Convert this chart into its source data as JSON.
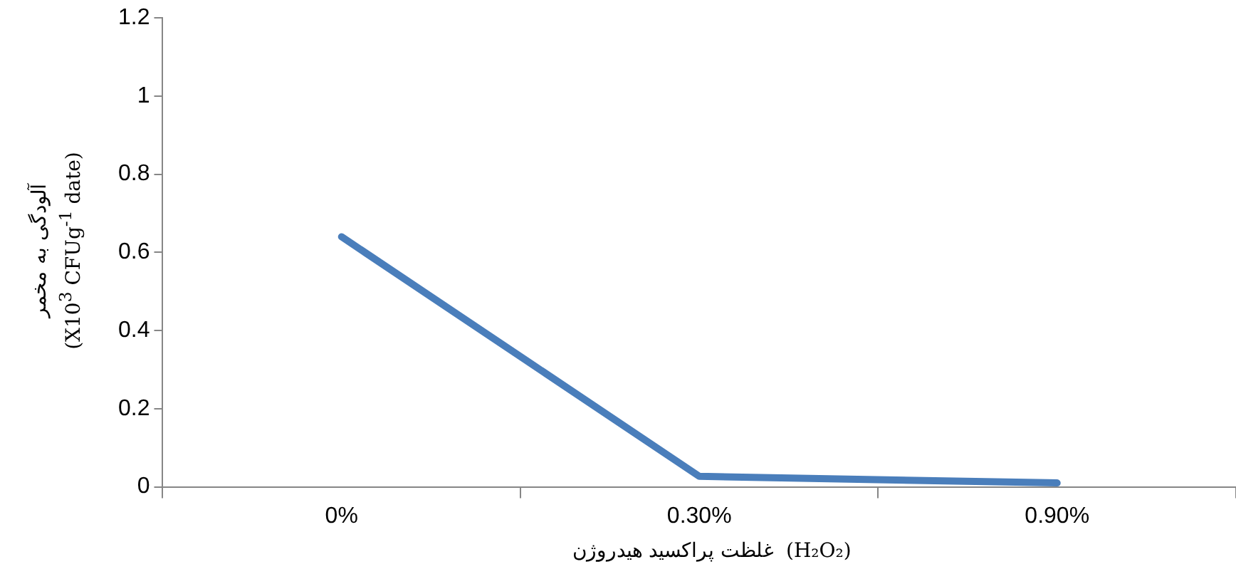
{
  "chart_data": {
    "type": "line",
    "xlabel": "غلظت پراکسید هیدروژن  (H₂O₂)",
    "ylabel": "آلودگی به مخمر\n(X10$^{3}$ CFUg$^{-1}$ date)",
    "categories": [
      "0%",
      "0.30%",
      "0.90%"
    ],
    "series": [
      {
        "color": "#4a7ebb",
        "values": [
          0.64,
          0.027,
          0.01
        ]
      }
    ],
    "ylim": [
      0,
      1.2
    ],
    "yticks": [
      0,
      0.2,
      0.4,
      0.6,
      0.8,
      1,
      1.2
    ],
    "marker": "none",
    "line_style": "solid"
  }
}
